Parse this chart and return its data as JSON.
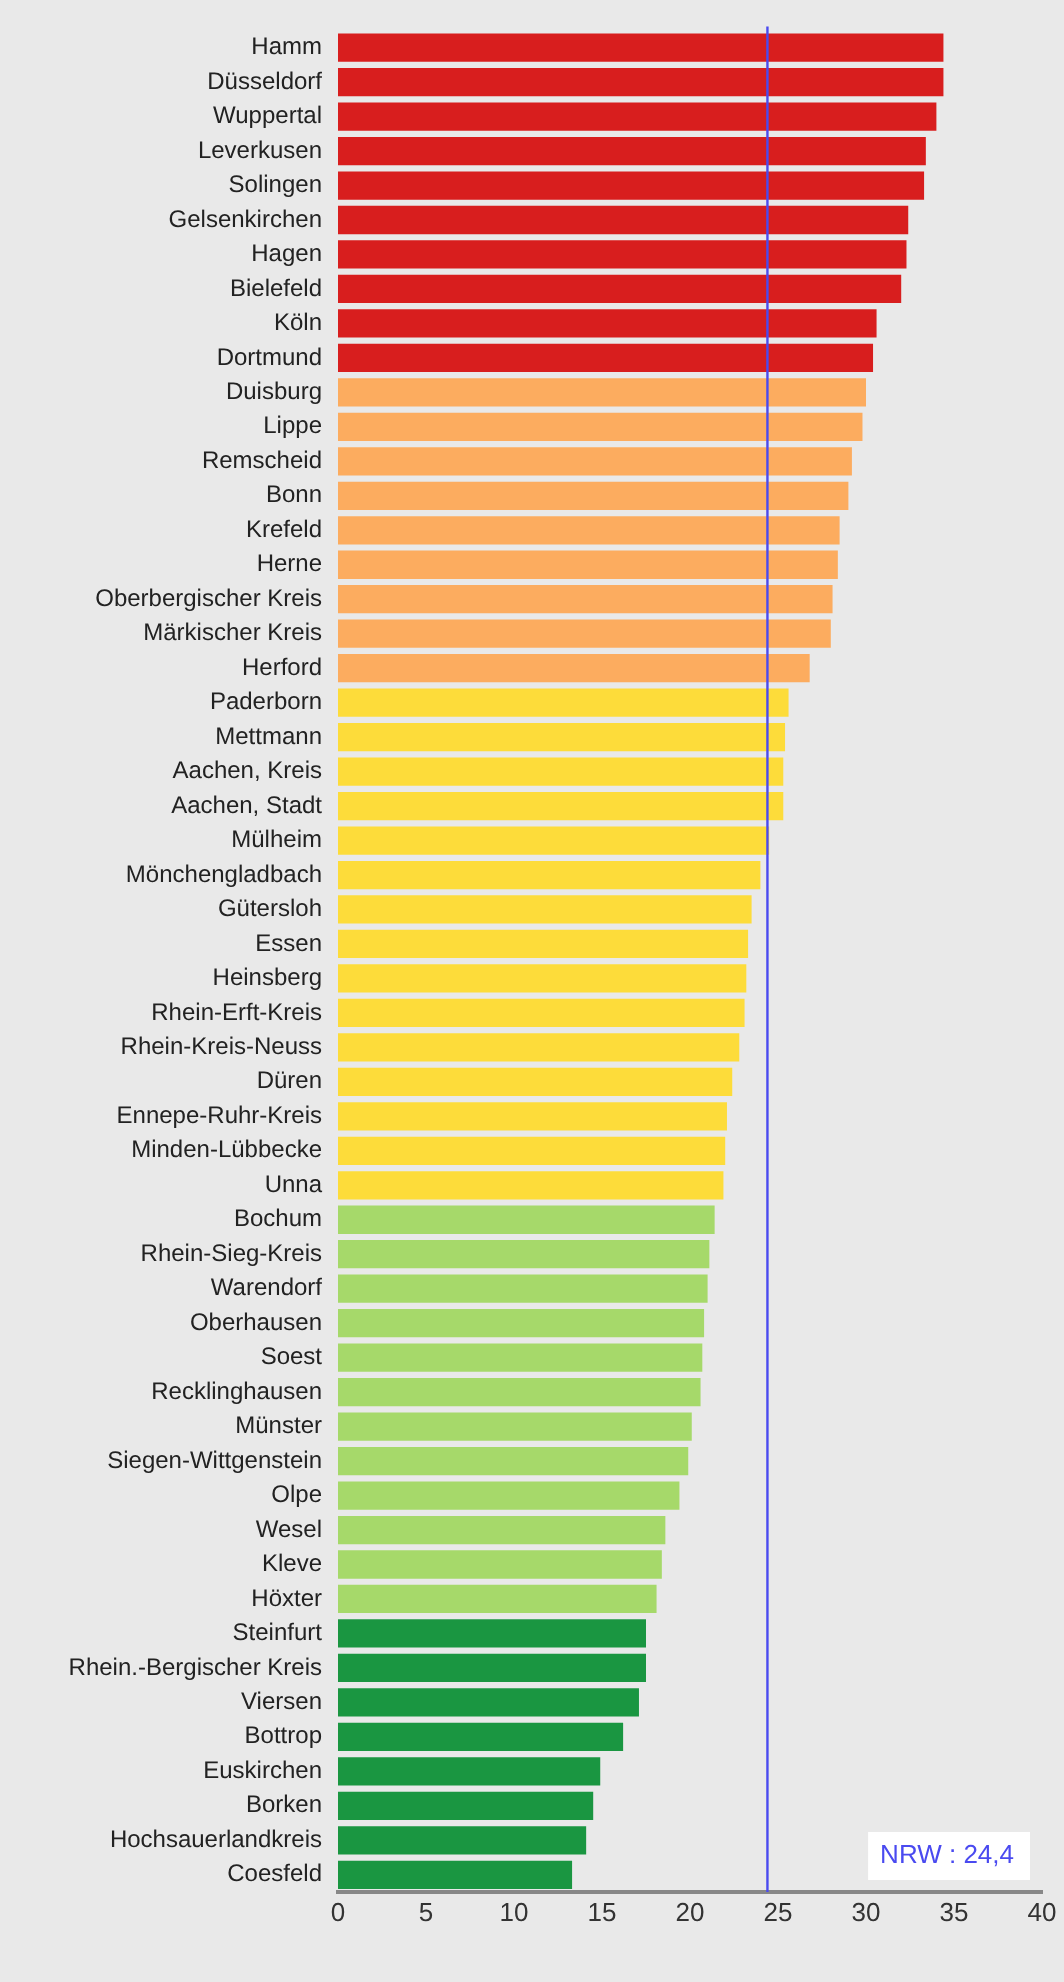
{
  "chart_data": {
    "type": "bar",
    "orientation": "horizontal",
    "categories": [
      "Hamm",
      "Düsseldorf",
      "Wuppertal",
      "Leverkusen",
      "Solingen",
      "Gelsenkirchen",
      "Hagen",
      "Bielefeld",
      "Köln",
      "Dortmund",
      "Duisburg",
      "Lippe",
      "Remscheid",
      "Bonn",
      "Krefeld",
      "Herne",
      "Oberbergischer Kreis",
      "Märkischer Kreis",
      "Herford",
      "Paderborn",
      "Mettmann",
      "Aachen, Kreis",
      "Aachen, Stadt",
      "Mülheim",
      "Mönchengladbach",
      "Gütersloh",
      "Essen",
      "Heinsberg",
      "Rhein-Erft-Kreis",
      "Rhein-Kreis-Neuss",
      "Düren",
      "Ennepe-Ruhr-Kreis",
      "Minden-Lübbecke",
      "Unna",
      "Bochum",
      "Rhein-Sieg-Kreis",
      "Warendorf",
      "Oberhausen",
      "Soest",
      "Recklinghausen",
      "Münster",
      "Siegen-Wittgenstein",
      "Olpe",
      "Wesel",
      "Kleve",
      "Höxter",
      "Steinfurt",
      "Rhein.-Bergischer Kreis",
      "Viersen",
      "Bottrop",
      "Euskirchen",
      "Borken",
      "Hochsauerlandkreis",
      "Coesfeld"
    ],
    "values": [
      34.4,
      34.4,
      34.0,
      33.4,
      33.3,
      32.4,
      32.3,
      32.0,
      30.6,
      30.4,
      30.0,
      29.8,
      29.2,
      29.0,
      28.5,
      28.4,
      28.1,
      28.0,
      26.8,
      25.6,
      25.4,
      25.3,
      25.3,
      24.5,
      24.0,
      23.5,
      23.3,
      23.2,
      23.1,
      22.8,
      22.4,
      22.1,
      22.0,
      21.9,
      21.4,
      21.1,
      21.0,
      20.8,
      20.7,
      20.6,
      20.1,
      19.9,
      19.4,
      18.6,
      18.4,
      18.1,
      17.5,
      17.5,
      17.1,
      16.2,
      14.9,
      14.5,
      14.1,
      13.3
    ],
    "colors": [
      "#d81e1e",
      "#d81e1e",
      "#d81e1e",
      "#d81e1e",
      "#d81e1e",
      "#d81e1e",
      "#d81e1e",
      "#d81e1e",
      "#d81e1e",
      "#d81e1e",
      "#fcac5f",
      "#fcac5f",
      "#fcac5f",
      "#fcac5f",
      "#fcac5f",
      "#fcac5f",
      "#fcac5f",
      "#fcac5f",
      "#fcac5f",
      "#fddc3a",
      "#fddc3a",
      "#fddc3a",
      "#fddc3a",
      "#fddc3a",
      "#fddc3a",
      "#fddc3a",
      "#fddc3a",
      "#fddc3a",
      "#fddc3a",
      "#fddc3a",
      "#fddc3a",
      "#fddc3a",
      "#fddc3a",
      "#fddc3a",
      "#a6d96a",
      "#a6d96a",
      "#a6d96a",
      "#a6d96a",
      "#a6d96a",
      "#a6d96a",
      "#a6d96a",
      "#a6d96a",
      "#a6d96a",
      "#a6d96a",
      "#a6d96a",
      "#a6d96a",
      "#1a9641",
      "#1a9641",
      "#1a9641",
      "#1a9641",
      "#1a9641",
      "#1a9641",
      "#1a9641",
      "#1a9641"
    ],
    "xlim": [
      0,
      40
    ],
    "xticks": [
      0,
      5,
      10,
      15,
      20,
      25,
      30,
      35,
      40
    ],
    "ref_lines": [
      {
        "axis": "x",
        "value": 24.4,
        "label": "NRW : 24,4",
        "color": "#4a4af0"
      }
    ],
    "grid": false,
    "legend": false
  }
}
